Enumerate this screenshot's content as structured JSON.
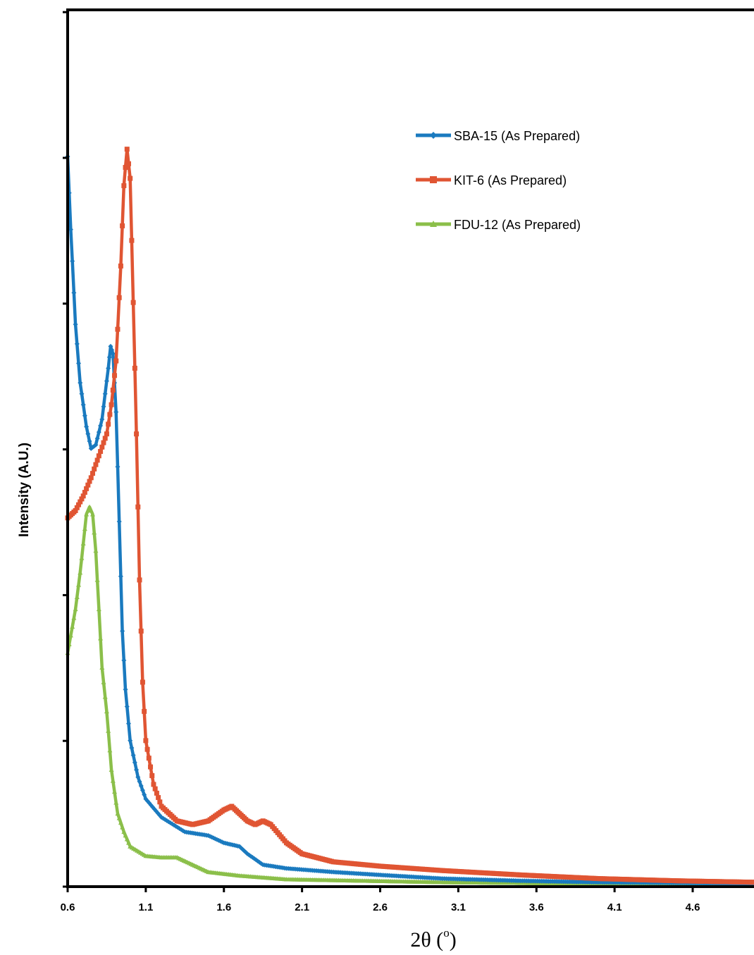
{
  "chart_data": {
    "type": "line",
    "title": "",
    "xlabel": "2θ (°)",
    "xlabel_main": "2θ (",
    "xlabel_sup": "o",
    "xlabel_close": ")",
    "ylabel": "Intensity (A.U.)",
    "xlim": [
      0.6,
      5.0
    ],
    "ylim": [
      0,
      100
    ],
    "x_ticks": [
      "0.6",
      "1.1",
      "1.6",
      "2.1",
      "2.6",
      "3.1",
      "3.6",
      "4.1",
      "4.6"
    ],
    "y_ticks_labeled": false,
    "grid": false,
    "legend_position": "top-right",
    "series": [
      {
        "name": "SBA-15 (As Prepared)",
        "color": "#1a7abf",
        "marker": "diamond",
        "points": [
          [
            0.6,
            100
          ],
          [
            0.62,
            90
          ],
          [
            0.65,
            77
          ],
          [
            0.68,
            69
          ],
          [
            0.72,
            63
          ],
          [
            0.75,
            60
          ],
          [
            0.78,
            60.5
          ],
          [
            0.82,
            64
          ],
          [
            0.86,
            71
          ],
          [
            0.875,
            74
          ],
          [
            0.89,
            73
          ],
          [
            0.91,
            65
          ],
          [
            0.93,
            50
          ],
          [
            0.95,
            35
          ],
          [
            0.97,
            27
          ],
          [
            1.0,
            20
          ],
          [
            1.05,
            15
          ],
          [
            1.1,
            12
          ],
          [
            1.2,
            9.5
          ],
          [
            1.35,
            7.5
          ],
          [
            1.5,
            7.0
          ],
          [
            1.6,
            6.0
          ],
          [
            1.7,
            5.5
          ],
          [
            1.75,
            4.5
          ],
          [
            1.85,
            3.0
          ],
          [
            2.0,
            2.5
          ],
          [
            2.3,
            2.0
          ],
          [
            2.6,
            1.6
          ],
          [
            3.0,
            1.1
          ],
          [
            3.5,
            0.8
          ],
          [
            4.0,
            0.6
          ],
          [
            4.5,
            0.5
          ],
          [
            5.0,
            0.4
          ]
        ]
      },
      {
        "name": "KIT-6 (As Prepared)",
        "color": "#e05533",
        "marker": "square",
        "points": [
          [
            0.6,
            50.5
          ],
          [
            0.65,
            51.5
          ],
          [
            0.7,
            53.5
          ],
          [
            0.75,
            56
          ],
          [
            0.8,
            59
          ],
          [
            0.85,
            62
          ],
          [
            0.88,
            66
          ],
          [
            0.91,
            72
          ],
          [
            0.94,
            85
          ],
          [
            0.96,
            96
          ],
          [
            0.98,
            101
          ],
          [
            1.0,
            97
          ],
          [
            1.02,
            80
          ],
          [
            1.04,
            62
          ],
          [
            1.06,
            42
          ],
          [
            1.08,
            28
          ],
          [
            1.1,
            20
          ],
          [
            1.15,
            14
          ],
          [
            1.2,
            11
          ],
          [
            1.3,
            9
          ],
          [
            1.4,
            8.5
          ],
          [
            1.5,
            9.0
          ],
          [
            1.6,
            10.5
          ],
          [
            1.65,
            11
          ],
          [
            1.7,
            10
          ],
          [
            1.75,
            9.0
          ],
          [
            1.8,
            8.5
          ],
          [
            1.85,
            9.0
          ],
          [
            1.9,
            8.5
          ],
          [
            2.0,
            6.0
          ],
          [
            2.1,
            4.5
          ],
          [
            2.3,
            3.4
          ],
          [
            2.6,
            2.8
          ],
          [
            3.0,
            2.2
          ],
          [
            3.5,
            1.6
          ],
          [
            4.0,
            1.1
          ],
          [
            4.5,
            0.8
          ],
          [
            5.0,
            0.6
          ]
        ]
      },
      {
        "name": "FDU-12 (As Prepared)",
        "color": "#8bbf4a",
        "marker": "triangle",
        "points": [
          [
            0.6,
            32
          ],
          [
            0.65,
            38
          ],
          [
            0.68,
            43
          ],
          [
            0.7,
            47
          ],
          [
            0.72,
            51
          ],
          [
            0.74,
            52
          ],
          [
            0.76,
            51
          ],
          [
            0.78,
            46
          ],
          [
            0.8,
            38
          ],
          [
            0.82,
            30
          ],
          [
            0.85,
            24
          ],
          [
            0.88,
            16
          ],
          [
            0.92,
            10
          ],
          [
            0.96,
            7.5
          ],
          [
            1.0,
            5.5
          ],
          [
            1.1,
            4.2
          ],
          [
            1.2,
            4.0
          ],
          [
            1.3,
            4.0
          ],
          [
            1.4,
            3.0
          ],
          [
            1.5,
            2.0
          ],
          [
            1.7,
            1.5
          ],
          [
            2.0,
            1.0
          ],
          [
            2.5,
            0.8
          ],
          [
            3.0,
            0.6
          ],
          [
            3.5,
            0.5
          ],
          [
            4.0,
            0.4
          ],
          [
            4.5,
            0.35
          ],
          [
            5.0,
            0.3
          ]
        ]
      }
    ]
  }
}
